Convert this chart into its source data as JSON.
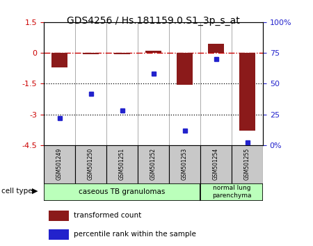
{
  "title": "GDS4256 / Hs.181159.0.S1_3p_s_at",
  "samples": [
    "GSM501249",
    "GSM501250",
    "GSM501251",
    "GSM501252",
    "GSM501253",
    "GSM501254",
    "GSM501255"
  ],
  "red_values": [
    -0.7,
    -0.05,
    -0.08,
    0.1,
    -1.55,
    0.45,
    -3.8
  ],
  "blue_values_pct": [
    22,
    42,
    28,
    58,
    12,
    70,
    2
  ],
  "ylim_left": [
    -4.5,
    1.5
  ],
  "ylim_right": [
    0,
    100
  ],
  "yticks_left": [
    1.5,
    0,
    -1.5,
    -3,
    -4.5
  ],
  "yticklabels_left": [
    "1.5",
    "0",
    "-1.5",
    "-3",
    "-4.5"
  ],
  "yticks_right": [
    0,
    25,
    50,
    75,
    100
  ],
  "yticklabels_right": [
    "0%",
    "25",
    "50",
    "75",
    "100%"
  ],
  "red_color": "#8B1A1A",
  "blue_color": "#2222CC",
  "dashdot_color": "#CC0000",
  "group1_label": "caseous TB granulomas",
  "group2_label": "normal lung\nparenchyma",
  "group1_color": "#BBFFBB",
  "group2_color": "#BBFFBB",
  "cell_type_label": "cell type",
  "legend_red": "transformed count",
  "legend_blue": "percentile rank within the sample",
  "bar_width": 0.5,
  "sample_box_color": "#C8C8C8",
  "label_fontsize": 7,
  "tick_fontsize": 8,
  "title_fontsize": 10
}
